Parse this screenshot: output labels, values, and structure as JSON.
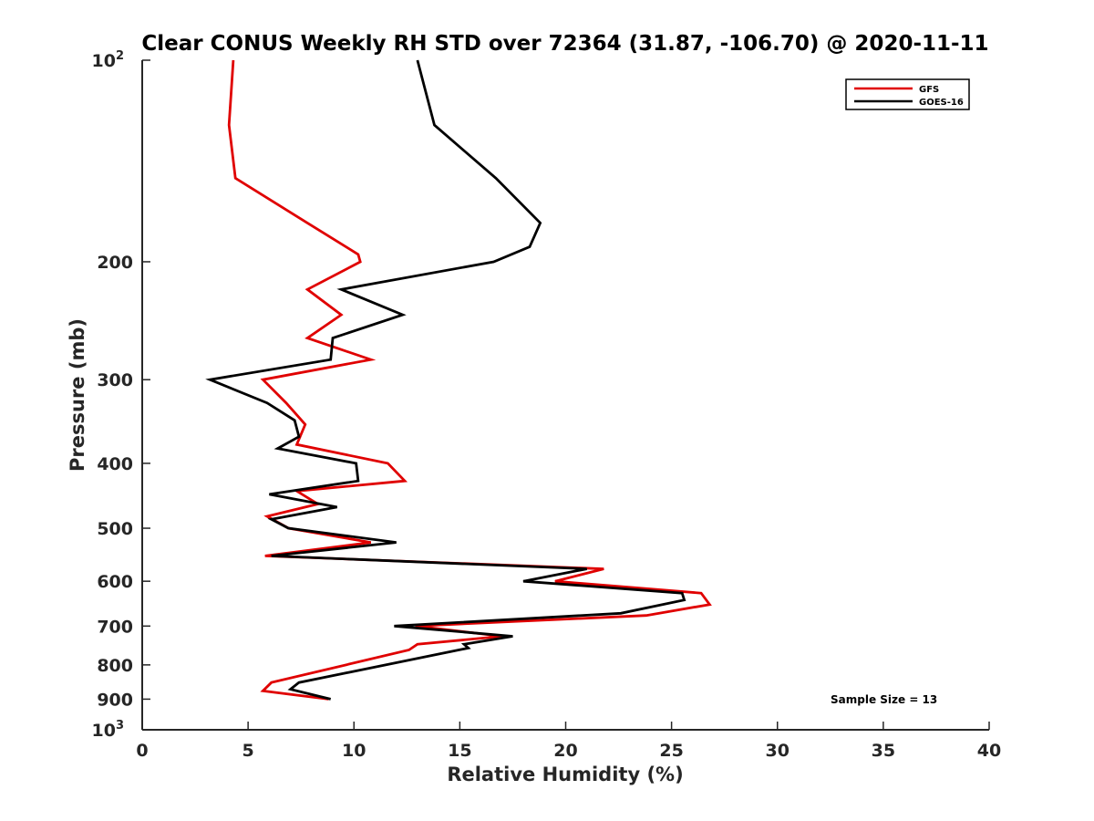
{
  "chart_data": {
    "type": "line",
    "title": "Clear CONUS Weekly RH STD over 72364 (31.87, -106.70) @ 2020-11-11",
    "xlabel": "Relative Humidity (%)",
    "ylabel": "Pressure (mb)",
    "xlim": [
      0,
      40
    ],
    "ylim": [
      100,
      1000
    ],
    "y_scale": "log",
    "y_reversed": true,
    "x_ticks": [
      "0",
      "5",
      "10",
      "15",
      "20",
      "25",
      "30",
      "35",
      "40"
    ],
    "y_ticks": [
      {
        "value": 100,
        "base": "10",
        "exp": "2"
      },
      {
        "value": 200,
        "label": "200"
      },
      {
        "value": 300,
        "label": "300"
      },
      {
        "value": 400,
        "label": "400"
      },
      {
        "value": 500,
        "label": "500"
      },
      {
        "value": 600,
        "label": "600"
      },
      {
        "value": 700,
        "label": "700"
      },
      {
        "value": 800,
        "label": "800"
      },
      {
        "value": 900,
        "label": "900"
      },
      {
        "value": 1000,
        "base": "10",
        "exp": "3"
      }
    ],
    "legend_position": "top-right",
    "grid": false,
    "annotation": "Sample Size = 13",
    "series": [
      {
        "name": "GFS",
        "color": "#e00000",
        "points": [
          [
            4.3,
            100
          ],
          [
            4.1,
            125
          ],
          [
            4.4,
            150
          ],
          [
            7.8,
            175
          ],
          [
            10.2,
            195
          ],
          [
            10.3,
            200
          ],
          [
            7.8,
            220
          ],
          [
            9.4,
            240
          ],
          [
            7.8,
            260
          ],
          [
            10.8,
            280
          ],
          [
            5.7,
            300
          ],
          [
            6.8,
            325
          ],
          [
            7.7,
            350
          ],
          [
            7.3,
            375
          ],
          [
            11.6,
            400
          ],
          [
            12.4,
            425
          ],
          [
            7.3,
            440
          ],
          [
            8.3,
            460
          ],
          [
            5.9,
            480
          ],
          [
            6.9,
            500
          ],
          [
            10.8,
            525
          ],
          [
            5.8,
            550
          ],
          [
            21.8,
            575
          ],
          [
            19.5,
            600
          ],
          [
            26.4,
            625
          ],
          [
            26.8,
            650
          ],
          [
            23.8,
            675
          ],
          [
            12.9,
            700
          ],
          [
            17.0,
            725
          ],
          [
            13.0,
            745
          ],
          [
            12.6,
            760
          ],
          [
            6.1,
            850
          ],
          [
            5.7,
            875
          ],
          [
            8.8,
            900
          ]
        ]
      },
      {
        "name": "GOES-16",
        "color": "#000000",
        "points": [
          [
            13.0,
            100
          ],
          [
            13.8,
            125
          ],
          [
            16.7,
            150
          ],
          [
            18.8,
            175
          ],
          [
            18.3,
            190
          ],
          [
            16.6,
            200
          ],
          [
            9.4,
            220
          ],
          [
            12.3,
            240
          ],
          [
            9.0,
            260
          ],
          [
            8.9,
            280
          ],
          [
            3.2,
            300
          ],
          [
            5.9,
            325
          ],
          [
            7.2,
            345
          ],
          [
            7.4,
            365
          ],
          [
            6.4,
            380
          ],
          [
            10.1,
            400
          ],
          [
            10.2,
            425
          ],
          [
            6.0,
            445
          ],
          [
            9.2,
            465
          ],
          [
            6.1,
            485
          ],
          [
            6.9,
            500
          ],
          [
            12.0,
            525
          ],
          [
            6.1,
            550
          ],
          [
            21.0,
            575
          ],
          [
            18.0,
            600
          ],
          [
            25.5,
            625
          ],
          [
            25.6,
            640
          ],
          [
            22.6,
            670
          ],
          [
            11.9,
            700
          ],
          [
            17.5,
            725
          ],
          [
            15.2,
            745
          ],
          [
            15.4,
            755
          ],
          [
            7.4,
            850
          ],
          [
            7.0,
            870
          ],
          [
            8.9,
            900
          ]
        ]
      }
    ]
  }
}
